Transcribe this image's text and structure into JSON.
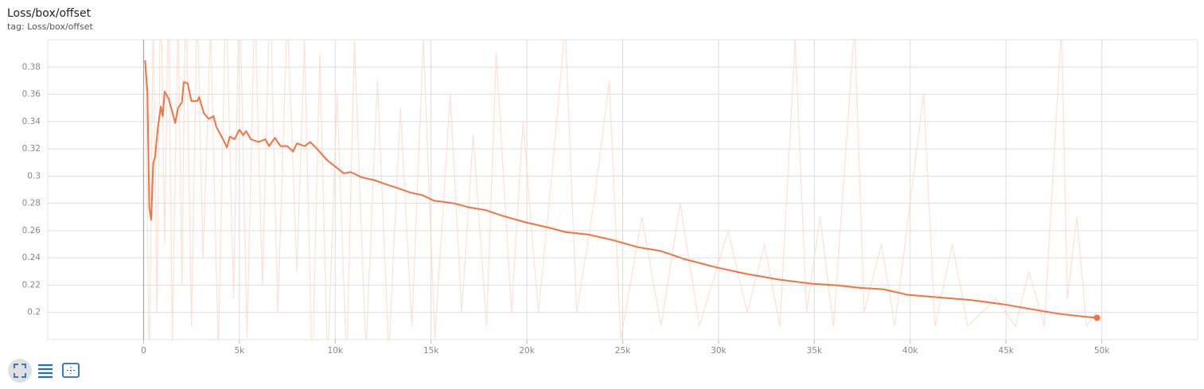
{
  "chart_data": {
    "type": "line",
    "title": "Loss/box/offset",
    "subtitle": "tag: Loss/box/offset",
    "xlim": [
      -5000,
      55000
    ],
    "ylim": [
      0.18,
      0.4
    ],
    "xticks": [
      {
        "value": 0,
        "label": "0"
      },
      {
        "value": 5000,
        "label": "5k"
      },
      {
        "value": 10000,
        "label": "10k"
      },
      {
        "value": 15000,
        "label": "15k"
      },
      {
        "value": 20000,
        "label": "20k"
      },
      {
        "value": 25000,
        "label": "25k"
      },
      {
        "value": 30000,
        "label": "30k"
      },
      {
        "value": 35000,
        "label": "35k"
      },
      {
        "value": 40000,
        "label": "40k"
      },
      {
        "value": 45000,
        "label": "45k"
      },
      {
        "value": 50000,
        "label": "50k"
      }
    ],
    "yticks": [
      0.2,
      0.22,
      0.24,
      0.26,
      0.28,
      0.3,
      0.32,
      0.34,
      0.36,
      0.38
    ],
    "grid": true,
    "raw": {
      "color": "#fdd5c6",
      "x": [
        100,
        300,
        500,
        700,
        900,
        1100,
        1300,
        1500,
        1800,
        2000,
        2200,
        2500,
        2800,
        3100,
        3500,
        3900,
        4300,
        4700,
        5000,
        5400,
        5800,
        6200,
        6600,
        7000,
        7500,
        8000,
        8400,
        8800,
        9200,
        9600,
        10100,
        10600,
        11000,
        11600,
        12200,
        12800,
        13400,
        14000,
        14600,
        15200,
        16000,
        16600,
        17200,
        17900,
        18400,
        19200,
        19800,
        20600,
        21300,
        22000,
        22600,
        23500,
        24300,
        24900,
        26000,
        27000,
        28000,
        29000,
        30500,
        31500,
        32400,
        33200,
        34000,
        34600,
        35300,
        36000,
        37100,
        37600,
        38500,
        39200,
        40700,
        41300,
        42200,
        43000,
        44500,
        45500,
        46200,
        47000,
        47900,
        48200,
        48700,
        49200,
        49700
      ],
      "values": [
        0.38,
        0.15,
        0.42,
        0.2,
        0.45,
        0.25,
        0.44,
        0.18,
        0.42,
        0.22,
        0.45,
        0.19,
        0.43,
        0.24,
        0.41,
        0.17,
        0.44,
        0.21,
        0.45,
        0.18,
        0.43,
        0.22,
        0.44,
        0.2,
        0.42,
        0.23,
        0.4,
        0.15,
        0.39,
        0.16,
        0.36,
        0.16,
        0.4,
        0.17,
        0.37,
        0.17,
        0.35,
        0.19,
        0.4,
        0.18,
        0.36,
        0.2,
        0.33,
        0.19,
        0.39,
        0.2,
        0.34,
        0.2,
        0.3,
        0.41,
        0.2,
        0.28,
        0.37,
        0.18,
        0.27,
        0.19,
        0.28,
        0.19,
        0.26,
        0.2,
        0.25,
        0.19,
        0.4,
        0.2,
        0.27,
        0.19,
        0.41,
        0.2,
        0.25,
        0.19,
        0.36,
        0.19,
        0.25,
        0.19,
        0.21,
        0.19,
        0.23,
        0.19,
        0.41,
        0.21,
        0.27,
        0.19,
        0.2
      ]
    },
    "smoothed": {
      "color": "#f4723e",
      "x": [
        80,
        200,
        300,
        400,
        500,
        600,
        750,
        900,
        1000,
        1100,
        1300,
        1500,
        1650,
        1800,
        2000,
        2100,
        2300,
        2500,
        2800,
        2900,
        3150,
        3400,
        3650,
        3800,
        4150,
        4350,
        4500,
        4750,
        5000,
        5200,
        5350,
        5600,
        6000,
        6350,
        6550,
        6850,
        7150,
        7500,
        7800,
        8000,
        8400,
        8700,
        9050,
        9550,
        10000,
        10450,
        10800,
        11400,
        12050,
        12650,
        13300,
        13900,
        14550,
        15150,
        16200,
        17000,
        17850,
        18700,
        19950,
        21200,
        22000,
        23250,
        24500,
        25750,
        27000,
        28250,
        29900,
        31550,
        33200,
        34900,
        36100,
        37400,
        38600,
        39850,
        41500,
        43200,
        44850,
        46500,
        47750,
        49000,
        49750
      ],
      "values": [
        0.385,
        0.362,
        0.277,
        0.268,
        0.309,
        0.314,
        0.336,
        0.351,
        0.344,
        0.362,
        0.357,
        0.347,
        0.339,
        0.35,
        0.354,
        0.369,
        0.368,
        0.355,
        0.355,
        0.358,
        0.346,
        0.342,
        0.344,
        0.336,
        0.327,
        0.321,
        0.329,
        0.327,
        0.334,
        0.33,
        0.333,
        0.327,
        0.325,
        0.327,
        0.322,
        0.328,
        0.322,
        0.322,
        0.318,
        0.324,
        0.322,
        0.325,
        0.32,
        0.312,
        0.307,
        0.302,
        0.303,
        0.299,
        0.297,
        0.294,
        0.291,
        0.288,
        0.286,
        0.282,
        0.28,
        0.277,
        0.275,
        0.271,
        0.266,
        0.262,
        0.259,
        0.257,
        0.253,
        0.248,
        0.245,
        0.239,
        0.233,
        0.228,
        0.224,
        0.221,
        0.22,
        0.218,
        0.217,
        0.213,
        0.211,
        0.209,
        0.206,
        0.202,
        0.199,
        0.197,
        0.196
      ]
    }
  }
}
